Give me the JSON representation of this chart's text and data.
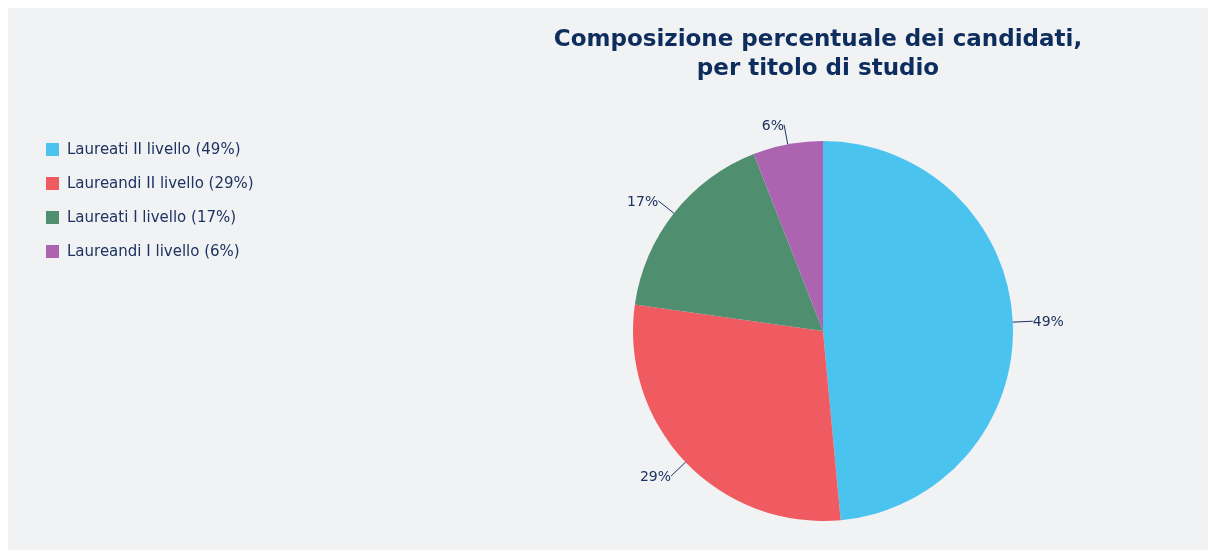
{
  "chart_data": {
    "type": "pie",
    "title": "Composizione percentuale dei candidati,\nper titolo di studio",
    "categories": [
      "Laureati II livello (49%)",
      "Laureandi II livello (29%)",
      "Laureati I livello (17%)",
      "Laureandi I livello (6%)"
    ],
    "values": [
      49,
      29,
      17,
      6
    ],
    "colors": [
      "#4ac3ef",
      "#f05b61",
      "#4f8f70",
      "#ac63b0"
    ],
    "value_labels": [
      "49%",
      "29%",
      "17%",
      "6%"
    ],
    "legend": "left"
  }
}
